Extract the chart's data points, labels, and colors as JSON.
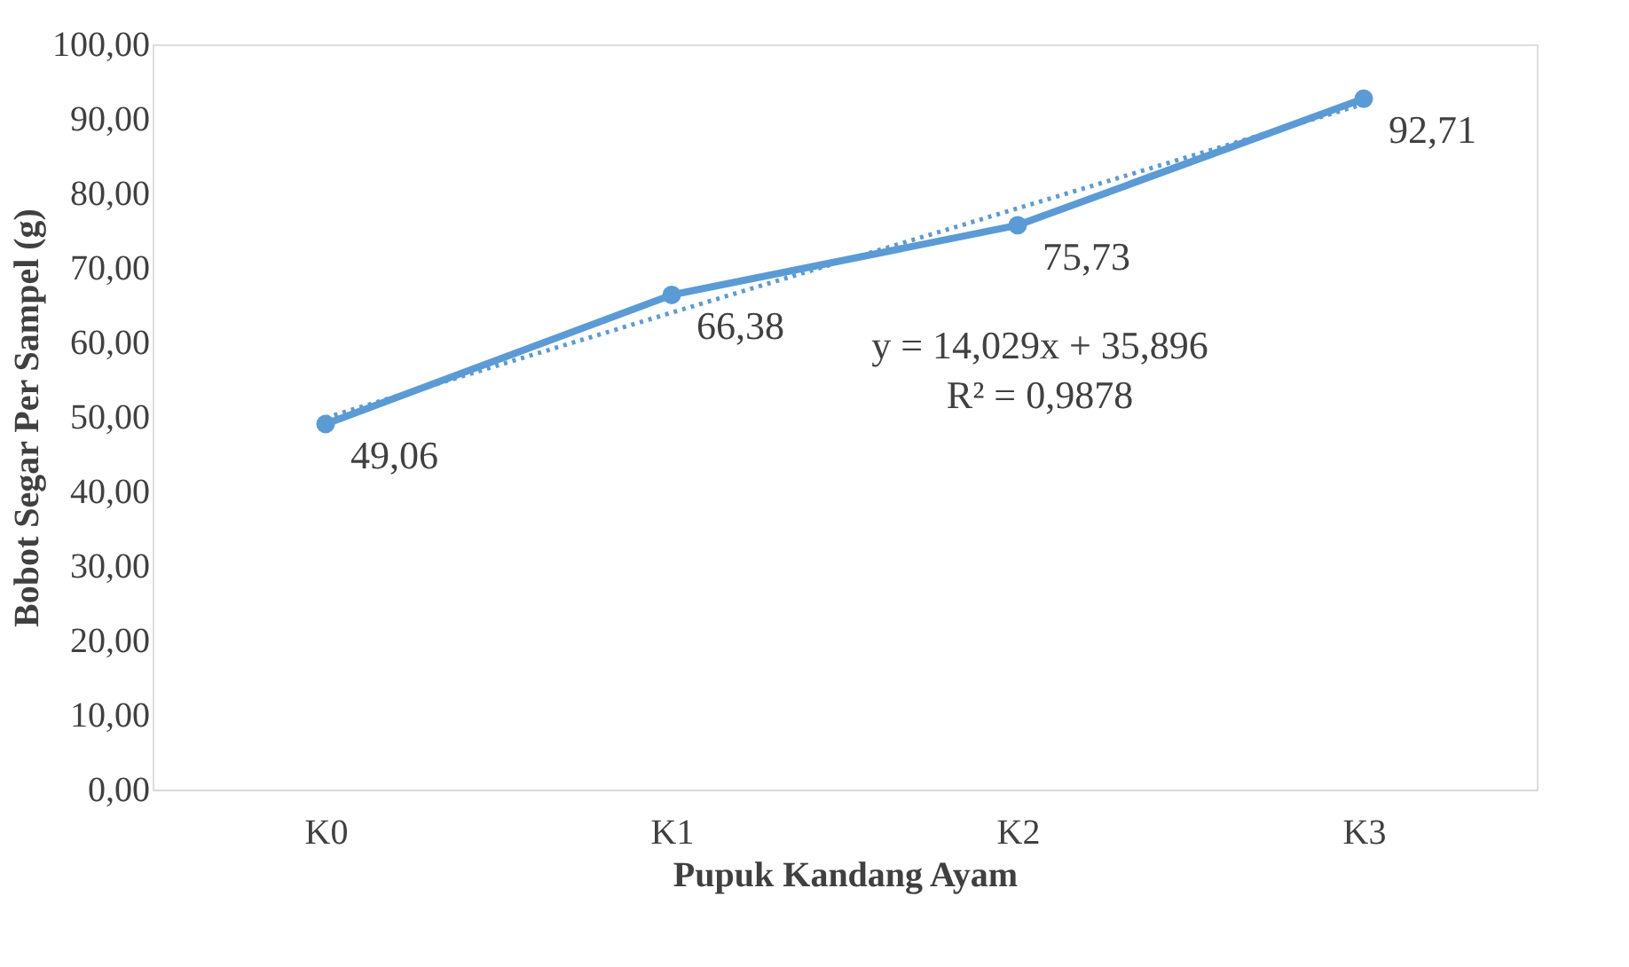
{
  "chart_data": {
    "type": "line",
    "xlabel": "Pupuk Kandang Ayam",
    "ylabel": "Bobot Segar Per Sampel (g)",
    "categories": [
      "K0",
      "K1",
      "K2",
      "K3"
    ],
    "series": [
      {
        "color": "#5b9bd5",
        "values": [
          49.06,
          66.38,
          75.73,
          92.71
        ],
        "marker": "circle",
        "line_style": "solid",
        "value_labels": [
          "49,06",
          "66,38",
          "75,73",
          "92,71"
        ]
      },
      {
        "type": "line",
        "color": "#5b9bd5",
        "values": [
          49.9,
          64.0,
          78.0,
          92.0
        ],
        "marker": "none",
        "line_style": "dotted"
      }
    ],
    "ylim": [
      0,
      100
    ],
    "yticks": [
      {
        "value": 0,
        "label": "0,00"
      },
      {
        "value": 10,
        "label": "10,00"
      },
      {
        "value": 20,
        "label": "20,00"
      },
      {
        "value": 30,
        "label": "30,00"
      },
      {
        "value": 40,
        "label": "40,00"
      },
      {
        "value": 50,
        "label": "50,00"
      },
      {
        "value": 60,
        "label": "60,00"
      },
      {
        "value": 70,
        "label": "70,00"
      },
      {
        "value": 80,
        "label": "80,00"
      },
      {
        "value": 90,
        "label": "90,00"
      },
      {
        "value": 100,
        "label": "100,00"
      }
    ],
    "annotations": [
      "y = 14,029x + 35,896",
      "R² = 0,9878"
    ],
    "grid": false
  }
}
